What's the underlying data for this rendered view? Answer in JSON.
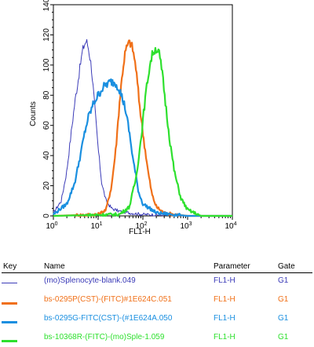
{
  "chart_data": {
    "type": "line",
    "title": "",
    "xlabel": "FL1-H",
    "ylabel": "Counts",
    "xscale": "log",
    "xlim": [
      1,
      10000
    ],
    "ylim": [
      0,
      140
    ],
    "x_ticks": [
      {
        "base": "10",
        "exp": "0"
      },
      {
        "base": "10",
        "exp": "1"
      },
      {
        "base": "10",
        "exp": "2"
      },
      {
        "base": "10",
        "exp": "3"
      },
      {
        "base": "10",
        "exp": "4"
      }
    ],
    "y_ticks": [
      "0",
      "20",
      "40",
      "60",
      "80",
      "100",
      "120",
      "140"
    ],
    "series": [
      {
        "name": "(mo)Splenocyte-blank.049",
        "color": "#3b3bb8",
        "x": [
          1,
          1.5,
          2,
          2.5,
          3,
          3.5,
          4,
          4.5,
          5,
          5.5,
          6,
          7,
          8,
          10,
          12,
          15,
          20,
          30,
          50,
          100,
          1000
        ],
        "y": [
          2,
          10,
          30,
          55,
          75,
          88,
          100,
          110,
          114,
          116,
          112,
          100,
          80,
          45,
          22,
          10,
          5,
          3,
          2,
          1,
          0
        ]
      },
      {
        "name": "bs-0295P(CST)-(FITC)#1E624C.051",
        "color": "#f07018",
        "x": [
          1,
          10,
          15,
          20,
          25,
          30,
          35,
          40,
          45,
          50,
          55,
          60,
          70,
          80,
          100,
          130,
          160,
          200,
          300,
          500,
          1000
        ],
        "y": [
          0,
          1,
          4,
          20,
          45,
          75,
          95,
          108,
          113,
          115,
          114,
          110,
          98,
          80,
          55,
          30,
          14,
          6,
          2,
          1,
          0
        ]
      },
      {
        "name": "bs-0295G-FITC(CST)-(#1E624A.050",
        "color": "#1a8fe0",
        "x": [
          1,
          2,
          3,
          4,
          5,
          6,
          8,
          10,
          12,
          15,
          20,
          25,
          30,
          40,
          50,
          60,
          80,
          100,
          200,
          1000
        ],
        "y": [
          1,
          8,
          22,
          40,
          55,
          65,
          75,
          80,
          84,
          87,
          89,
          88,
          84,
          72,
          55,
          38,
          16,
          8,
          2,
          0
        ]
      },
      {
        "name": "bs-10368R-(FITC)-(mo)Sple-1.059",
        "color": "#2ee02e",
        "x": [
          1,
          30,
          50,
          70,
          90,
          110,
          130,
          150,
          170,
          200,
          230,
          270,
          320,
          400,
          500,
          700,
          1000,
          2000
        ],
        "y": [
          0,
          1,
          6,
          25,
          50,
          75,
          92,
          103,
          109,
          111,
          108,
          95,
          75,
          50,
          30,
          12,
          4,
          0
        ]
      }
    ]
  },
  "key_table": {
    "headers": {
      "key": "Key",
      "name": "Name",
      "parameter": "Parameter",
      "gate": "Gate"
    },
    "rows": [
      {
        "name": "(mo)Splenocyte-blank.049",
        "parameter": "FL1-H",
        "gate": "G1",
        "color": "#3b3bb8"
      },
      {
        "name": "bs-0295P(CST)-(FITC)#1E624C.051",
        "parameter": "FL1-H",
        "gate": "G1",
        "color": "#f07018"
      },
      {
        "name": "bs-0295G-FITC(CST)-(#1E624A.050",
        "parameter": "FL1-H",
        "gate": "G1",
        "color": "#1a8fe0"
      },
      {
        "name": "bs-10368R-(FITC)-(mo)Sple-1.059",
        "parameter": "FL1-H",
        "gate": "G1",
        "color": "#2ee02e"
      }
    ]
  }
}
